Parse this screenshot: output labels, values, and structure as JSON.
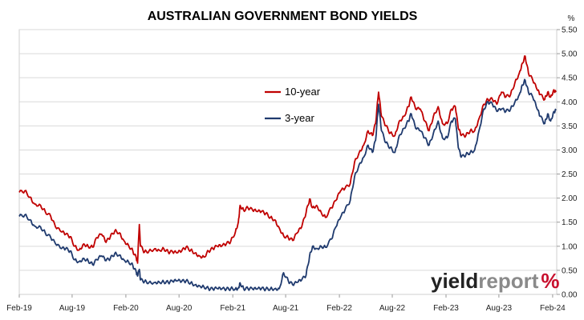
{
  "chart_data": {
    "type": "line",
    "title": "AUSTRALIAN GOVERNMENT BOND YIELDS",
    "ylabel": "%",
    "ylim": [
      0,
      5.5
    ],
    "yticks": [
      0.0,
      0.5,
      1.0,
      1.5,
      2.0,
      2.5,
      3.0,
      3.5,
      4.0,
      4.5,
      5.0,
      5.5
    ],
    "ytick_labels": [
      "0.00",
      "0.50",
      "1.00",
      "1.50",
      "2.00",
      "2.50",
      "3.00",
      "3.50",
      "4.00",
      "4.50",
      "5.00",
      "5.50"
    ],
    "xlim": [
      "2019-02-01",
      "2024-02-15"
    ],
    "xtick_dates": [
      "2019-02-01",
      "2019-08-01",
      "2020-02-01",
      "2020-08-01",
      "2021-02-01",
      "2021-08-01",
      "2022-02-01",
      "2022-08-01",
      "2023-02-01",
      "2023-08-01",
      "2024-02-01"
    ],
    "xtick_labels": [
      "Feb-19",
      "Aug-19",
      "Feb-20",
      "Aug-20",
      "Feb-21",
      "Aug-21",
      "Feb-22",
      "Aug-22",
      "Feb-23",
      "Aug-23",
      "Feb-24"
    ],
    "grid": "horizontal",
    "legend_position": "upper-center",
    "series": [
      {
        "name": "10-year",
        "color": "#c00000",
        "points": [
          [
            "2019-02-01",
            2.12
          ],
          [
            "2019-02-20",
            2.15
          ],
          [
            "2019-03-10",
            2.02
          ],
          [
            "2019-03-25",
            1.88
          ],
          [
            "2019-04-15",
            1.85
          ],
          [
            "2019-05-01",
            1.72
          ],
          [
            "2019-05-20",
            1.62
          ],
          [
            "2019-06-05",
            1.4
          ],
          [
            "2019-06-25",
            1.3
          ],
          [
            "2019-07-10",
            1.25
          ],
          [
            "2019-07-25",
            1.2
          ],
          [
            "2019-08-10",
            1.0
          ],
          [
            "2019-08-25",
            0.92
          ],
          [
            "2019-09-10",
            1.05
          ],
          [
            "2019-09-25",
            1.0
          ],
          [
            "2019-10-10",
            0.98
          ],
          [
            "2019-10-25",
            1.18
          ],
          [
            "2019-11-10",
            1.25
          ],
          [
            "2019-11-25",
            1.08
          ],
          [
            "2019-12-10",
            1.2
          ],
          [
            "2019-12-25",
            1.32
          ],
          [
            "2020-01-10",
            1.28
          ],
          [
            "2020-01-25",
            1.12
          ],
          [
            "2020-02-10",
            1.02
          ],
          [
            "2020-02-25",
            0.9
          ],
          [
            "2020-03-08",
            0.75
          ],
          [
            "2020-03-12",
            0.65
          ],
          [
            "2020-03-18",
            1.45
          ],
          [
            "2020-03-22",
            1.0
          ],
          [
            "2020-04-05",
            0.88
          ],
          [
            "2020-04-20",
            0.9
          ],
          [
            "2020-05-10",
            0.95
          ],
          [
            "2020-05-25",
            0.92
          ],
          [
            "2020-06-10",
            0.95
          ],
          [
            "2020-06-25",
            0.88
          ],
          [
            "2020-07-10",
            0.88
          ],
          [
            "2020-07-25",
            0.86
          ],
          [
            "2020-08-10",
            0.9
          ],
          [
            "2020-08-25",
            0.98
          ],
          [
            "2020-09-10",
            0.92
          ],
          [
            "2020-09-25",
            0.86
          ],
          [
            "2020-10-10",
            0.8
          ],
          [
            "2020-10-25",
            0.78
          ],
          [
            "2020-11-10",
            0.9
          ],
          [
            "2020-11-25",
            0.95
          ],
          [
            "2020-12-10",
            1.0
          ],
          [
            "2020-12-25",
            1.0
          ],
          [
            "2021-01-10",
            1.05
          ],
          [
            "2021-01-25",
            1.1
          ],
          [
            "2021-02-10",
            1.3
          ],
          [
            "2021-02-20",
            1.5
          ],
          [
            "2021-02-26",
            1.85
          ],
          [
            "2021-03-10",
            1.75
          ],
          [
            "2021-03-25",
            1.8
          ],
          [
            "2021-04-10",
            1.75
          ],
          [
            "2021-04-25",
            1.72
          ],
          [
            "2021-05-10",
            1.72
          ],
          [
            "2021-05-25",
            1.68
          ],
          [
            "2021-06-10",
            1.6
          ],
          [
            "2021-06-25",
            1.55
          ],
          [
            "2021-07-10",
            1.38
          ],
          [
            "2021-07-25",
            1.22
          ],
          [
            "2021-08-10",
            1.18
          ],
          [
            "2021-08-25",
            1.12
          ],
          [
            "2021-09-10",
            1.28
          ],
          [
            "2021-09-25",
            1.4
          ],
          [
            "2021-10-10",
            1.7
          ],
          [
            "2021-10-22",
            1.98
          ],
          [
            "2021-11-01",
            1.8
          ],
          [
            "2021-11-15",
            1.85
          ],
          [
            "2021-12-01",
            1.7
          ],
          [
            "2021-12-15",
            1.6
          ],
          [
            "2022-01-05",
            1.8
          ],
          [
            "2022-01-20",
            1.95
          ],
          [
            "2022-02-05",
            2.15
          ],
          [
            "2022-02-20",
            2.2
          ],
          [
            "2022-03-10",
            2.3
          ],
          [
            "2022-03-25",
            2.75
          ],
          [
            "2022-04-10",
            2.95
          ],
          [
            "2022-04-25",
            3.1
          ],
          [
            "2022-05-10",
            3.4
          ],
          [
            "2022-05-25",
            3.3
          ],
          [
            "2022-06-05",
            3.55
          ],
          [
            "2022-06-15",
            4.2
          ],
          [
            "2022-06-25",
            3.7
          ],
          [
            "2022-07-10",
            3.5
          ],
          [
            "2022-07-25",
            3.35
          ],
          [
            "2022-08-10",
            3.3
          ],
          [
            "2022-08-25",
            3.6
          ],
          [
            "2022-09-10",
            3.7
          ],
          [
            "2022-09-25",
            3.9
          ],
          [
            "2022-10-05",
            4.1
          ],
          [
            "2022-10-20",
            3.85
          ],
          [
            "2022-11-05",
            3.85
          ],
          [
            "2022-11-20",
            3.6
          ],
          [
            "2022-12-05",
            3.4
          ],
          [
            "2022-12-20",
            3.7
          ],
          [
            "2023-01-05",
            3.9
          ],
          [
            "2023-01-20",
            3.55
          ],
          [
            "2023-02-05",
            3.55
          ],
          [
            "2023-02-20",
            3.85
          ],
          [
            "2023-03-05",
            3.9
          ],
          [
            "2023-03-15",
            3.45
          ],
          [
            "2023-03-25",
            3.3
          ],
          [
            "2023-04-10",
            3.3
          ],
          [
            "2023-04-25",
            3.4
          ],
          [
            "2023-05-10",
            3.4
          ],
          [
            "2023-05-25",
            3.65
          ],
          [
            "2023-06-10",
            3.95
          ],
          [
            "2023-06-25",
            4.05
          ],
          [
            "2023-07-10",
            4.05
          ],
          [
            "2023-07-25",
            3.95
          ],
          [
            "2023-08-10",
            4.2
          ],
          [
            "2023-08-25",
            4.1
          ],
          [
            "2023-09-10",
            4.15
          ],
          [
            "2023-09-25",
            4.4
          ],
          [
            "2023-10-10",
            4.6
          ],
          [
            "2023-10-20",
            4.8
          ],
          [
            "2023-10-30",
            4.95
          ],
          [
            "2023-11-10",
            4.6
          ],
          [
            "2023-11-25",
            4.45
          ],
          [
            "2023-12-10",
            4.25
          ],
          [
            "2023-12-20",
            4.15
          ],
          [
            "2024-01-05",
            4.05
          ],
          [
            "2024-01-15",
            4.2
          ],
          [
            "2024-01-25",
            4.1
          ],
          [
            "2024-02-05",
            4.25
          ],
          [
            "2024-02-12",
            4.2
          ]
        ]
      },
      {
        "name": "3-year",
        "color": "#1f3a6e",
        "points": [
          [
            "2019-02-01",
            1.62
          ],
          [
            "2019-02-20",
            1.65
          ],
          [
            "2019-03-10",
            1.55
          ],
          [
            "2019-03-25",
            1.42
          ],
          [
            "2019-04-15",
            1.4
          ],
          [
            "2019-05-01",
            1.28
          ],
          [
            "2019-05-20",
            1.18
          ],
          [
            "2019-06-05",
            1.05
          ],
          [
            "2019-06-25",
            0.95
          ],
          [
            "2019-07-10",
            0.95
          ],
          [
            "2019-07-25",
            0.9
          ],
          [
            "2019-08-10",
            0.72
          ],
          [
            "2019-08-25",
            0.68
          ],
          [
            "2019-09-10",
            0.75
          ],
          [
            "2019-09-25",
            0.7
          ],
          [
            "2019-10-10",
            0.62
          ],
          [
            "2019-10-25",
            0.72
          ],
          [
            "2019-11-10",
            0.8
          ],
          [
            "2019-11-25",
            0.7
          ],
          [
            "2019-12-10",
            0.75
          ],
          [
            "2019-12-25",
            0.85
          ],
          [
            "2020-01-10",
            0.82
          ],
          [
            "2020-01-25",
            0.72
          ],
          [
            "2020-02-10",
            0.68
          ],
          [
            "2020-02-25",
            0.6
          ],
          [
            "2020-03-08",
            0.45
          ],
          [
            "2020-03-12",
            0.38
          ],
          [
            "2020-03-18",
            0.52
          ],
          [
            "2020-03-22",
            0.3
          ],
          [
            "2020-04-05",
            0.27
          ],
          [
            "2020-04-20",
            0.25
          ],
          [
            "2020-05-10",
            0.25
          ],
          [
            "2020-05-25",
            0.26
          ],
          [
            "2020-06-10",
            0.26
          ],
          [
            "2020-06-25",
            0.25
          ],
          [
            "2020-07-10",
            0.27
          ],
          [
            "2020-07-25",
            0.28
          ],
          [
            "2020-08-10",
            0.27
          ],
          [
            "2020-08-25",
            0.28
          ],
          [
            "2020-09-10",
            0.24
          ],
          [
            "2020-09-25",
            0.2
          ],
          [
            "2020-10-10",
            0.18
          ],
          [
            "2020-10-25",
            0.16
          ],
          [
            "2020-11-10",
            0.12
          ],
          [
            "2020-11-25",
            0.11
          ],
          [
            "2020-12-10",
            0.12
          ],
          [
            "2020-12-25",
            0.11
          ],
          [
            "2021-01-10",
            0.11
          ],
          [
            "2021-01-25",
            0.12
          ],
          [
            "2021-02-10",
            0.12
          ],
          [
            "2021-02-20",
            0.13
          ],
          [
            "2021-02-26",
            0.24
          ],
          [
            "2021-03-10",
            0.12
          ],
          [
            "2021-03-25",
            0.12
          ],
          [
            "2021-04-10",
            0.11
          ],
          [
            "2021-04-25",
            0.11
          ],
          [
            "2021-05-10",
            0.12
          ],
          [
            "2021-05-25",
            0.11
          ],
          [
            "2021-06-10",
            0.12
          ],
          [
            "2021-06-25",
            0.12
          ],
          [
            "2021-07-10",
            0.12
          ],
          [
            "2021-07-25",
            0.45
          ],
          [
            "2021-08-10",
            0.28
          ],
          [
            "2021-08-25",
            0.2
          ],
          [
            "2021-09-10",
            0.25
          ],
          [
            "2021-09-25",
            0.3
          ],
          [
            "2021-10-10",
            0.4
          ],
          [
            "2021-10-22",
            0.8
          ],
          [
            "2021-11-01",
            1.0
          ],
          [
            "2021-11-15",
            0.95
          ],
          [
            "2021-12-01",
            1.0
          ],
          [
            "2021-12-15",
            0.98
          ],
          [
            "2022-01-05",
            1.15
          ],
          [
            "2022-01-20",
            1.4
          ],
          [
            "2022-02-05",
            1.6
          ],
          [
            "2022-02-20",
            1.75
          ],
          [
            "2022-03-10",
            1.95
          ],
          [
            "2022-03-25",
            2.45
          ],
          [
            "2022-04-10",
            2.7
          ],
          [
            "2022-04-25",
            2.85
          ],
          [
            "2022-05-10",
            3.1
          ],
          [
            "2022-05-25",
            2.95
          ],
          [
            "2022-06-05",
            3.2
          ],
          [
            "2022-06-15",
            3.95
          ],
          [
            "2022-06-25",
            3.4
          ],
          [
            "2022-07-10",
            3.15
          ],
          [
            "2022-07-25",
            3.05
          ],
          [
            "2022-08-10",
            2.95
          ],
          [
            "2022-08-25",
            3.3
          ],
          [
            "2022-09-10",
            3.45
          ],
          [
            "2022-09-25",
            3.6
          ],
          [
            "2022-10-05",
            3.75
          ],
          [
            "2022-10-20",
            3.45
          ],
          [
            "2022-11-05",
            3.4
          ],
          [
            "2022-11-20",
            3.25
          ],
          [
            "2022-12-05",
            3.1
          ],
          [
            "2022-12-20",
            3.35
          ],
          [
            "2023-01-05",
            3.6
          ],
          [
            "2023-01-20",
            3.25
          ],
          [
            "2023-02-05",
            3.25
          ],
          [
            "2023-02-20",
            3.6
          ],
          [
            "2023-03-05",
            3.65
          ],
          [
            "2023-03-15",
            3.05
          ],
          [
            "2023-03-25",
            2.85
          ],
          [
            "2023-04-10",
            2.9
          ],
          [
            "2023-04-25",
            2.95
          ],
          [
            "2023-05-10",
            3.0
          ],
          [
            "2023-05-25",
            3.4
          ],
          [
            "2023-06-10",
            3.85
          ],
          [
            "2023-06-25",
            4.0
          ],
          [
            "2023-07-10",
            3.95
          ],
          [
            "2023-07-25",
            3.8
          ],
          [
            "2023-08-10",
            3.85
          ],
          [
            "2023-08-25",
            3.8
          ],
          [
            "2023-09-10",
            3.85
          ],
          [
            "2023-09-25",
            4.0
          ],
          [
            "2023-10-10",
            4.15
          ],
          [
            "2023-10-20",
            4.35
          ],
          [
            "2023-10-30",
            4.45
          ],
          [
            "2023-11-10",
            4.2
          ],
          [
            "2023-11-25",
            4.1
          ],
          [
            "2023-12-10",
            3.85
          ],
          [
            "2023-12-20",
            3.7
          ],
          [
            "2024-01-05",
            3.55
          ],
          [
            "2024-01-15",
            3.75
          ],
          [
            "2024-01-25",
            3.6
          ],
          [
            "2024-02-05",
            3.8
          ],
          [
            "2024-02-12",
            3.82
          ]
        ]
      }
    ]
  },
  "logo": {
    "part1": "yield",
    "part2": "report",
    "part3": "%"
  }
}
